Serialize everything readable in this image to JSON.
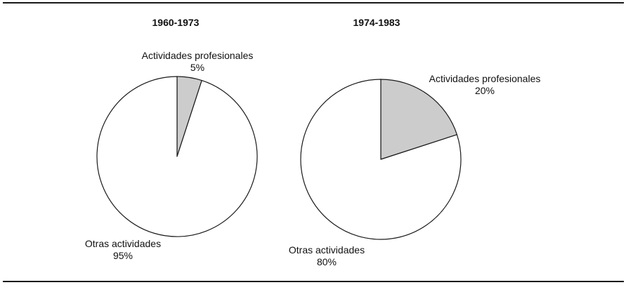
{
  "chart_data": [
    {
      "type": "pie",
      "title": "1960-1973",
      "slices": [
        {
          "label": "Actividades profesionales",
          "value": 5,
          "value_label": "5%",
          "color": "#cccccc"
        },
        {
          "label": "Otras actividades",
          "value": 95,
          "value_label": "95%",
          "color": "#ffffff"
        }
      ]
    },
    {
      "type": "pie",
      "title": "1974-1983",
      "slices": [
        {
          "label": "Actividades profesionales",
          "value": 20,
          "value_label": "20%",
          "color": "#cccccc"
        },
        {
          "label": "Otras actividades",
          "value": 80,
          "value_label": "80%",
          "color": "#ffffff"
        }
      ]
    }
  ]
}
